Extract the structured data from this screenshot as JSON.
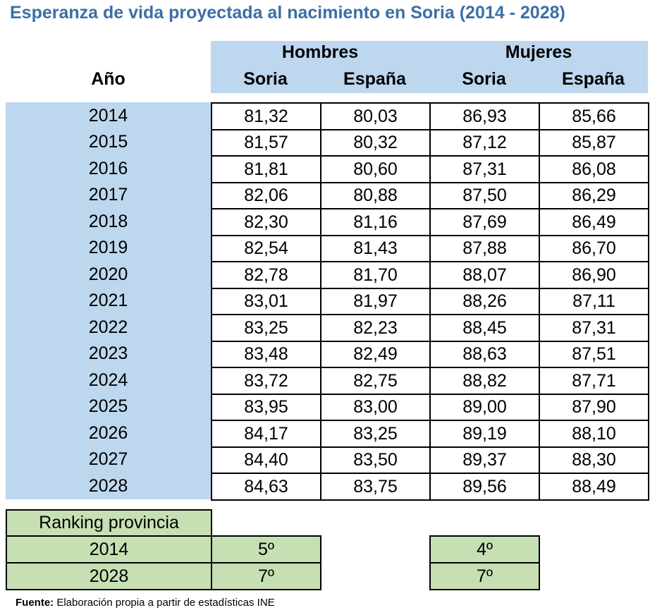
{
  "title": "Esperanza de vida proyectada al nacimiento  en Soria  (2014 - 2028)",
  "header": {
    "year_label": "Año",
    "group_hombres": "Hombres",
    "group_mujeres": "Mujeres",
    "col_soria": "Soria",
    "col_espana": "España"
  },
  "rows": [
    {
      "year": "2014",
      "h_soria": "81,32",
      "h_espana": "80,03",
      "m_soria": "86,93",
      "m_espana": "85,66"
    },
    {
      "year": "2015",
      "h_soria": "81,57",
      "h_espana": "80,32",
      "m_soria": "87,12",
      "m_espana": "85,87"
    },
    {
      "year": "2016",
      "h_soria": "81,81",
      "h_espana": "80,60",
      "m_soria": "87,31",
      "m_espana": "86,08"
    },
    {
      "year": "2017",
      "h_soria": "82,06",
      "h_espana": "80,88",
      "m_soria": "87,50",
      "m_espana": "86,29"
    },
    {
      "year": "2018",
      "h_soria": "82,30",
      "h_espana": "81,16",
      "m_soria": "87,69",
      "m_espana": "86,49"
    },
    {
      "year": "2019",
      "h_soria": "82,54",
      "h_espana": "81,43",
      "m_soria": "87,88",
      "m_espana": "86,70"
    },
    {
      "year": "2020",
      "h_soria": "82,78",
      "h_espana": "81,70",
      "m_soria": "88,07",
      "m_espana": "86,90"
    },
    {
      "year": "2021",
      "h_soria": "83,01",
      "h_espana": "81,97",
      "m_soria": "88,26",
      "m_espana": "87,11"
    },
    {
      "year": "2022",
      "h_soria": "83,25",
      "h_espana": "82,23",
      "m_soria": "88,45",
      "m_espana": "87,31"
    },
    {
      "year": "2023",
      "h_soria": "83,48",
      "h_espana": "82,49",
      "m_soria": "88,63",
      "m_espana": "87,51"
    },
    {
      "year": "2024",
      "h_soria": "83,72",
      "h_espana": "82,75",
      "m_soria": "88,82",
      "m_espana": "87,71"
    },
    {
      "year": "2025",
      "h_soria": "83,95",
      "h_espana": "83,00",
      "m_soria": "89,00",
      "m_espana": "87,90"
    },
    {
      "year": "2026",
      "h_soria": "84,17",
      "h_espana": "83,25",
      "m_soria": "89,19",
      "m_espana": "88,10"
    },
    {
      "year": "2027",
      "h_soria": "84,40",
      "h_espana": "83,50",
      "m_soria": "89,37",
      "m_espana": "88,30"
    },
    {
      "year": "2028",
      "h_soria": "84,63",
      "h_espana": "83,75",
      "m_soria": "89,56",
      "m_espana": "88,49"
    }
  ],
  "ranking": {
    "label": "Ranking provincia",
    "rows": [
      {
        "year": "2014",
        "hombres": "5º",
        "mujeres": "4º"
      },
      {
        "year": "2028",
        "hombres": "7º",
        "mujeres": "7º"
      }
    ]
  },
  "footer": {
    "label": "Fuente:",
    "text": " Elaboración propia a partir de estadísticas INE"
  },
  "colors": {
    "title": "#3a6fa8",
    "header_bg": "#bdd7ee",
    "ranking_bg": "#c6e0b4"
  }
}
